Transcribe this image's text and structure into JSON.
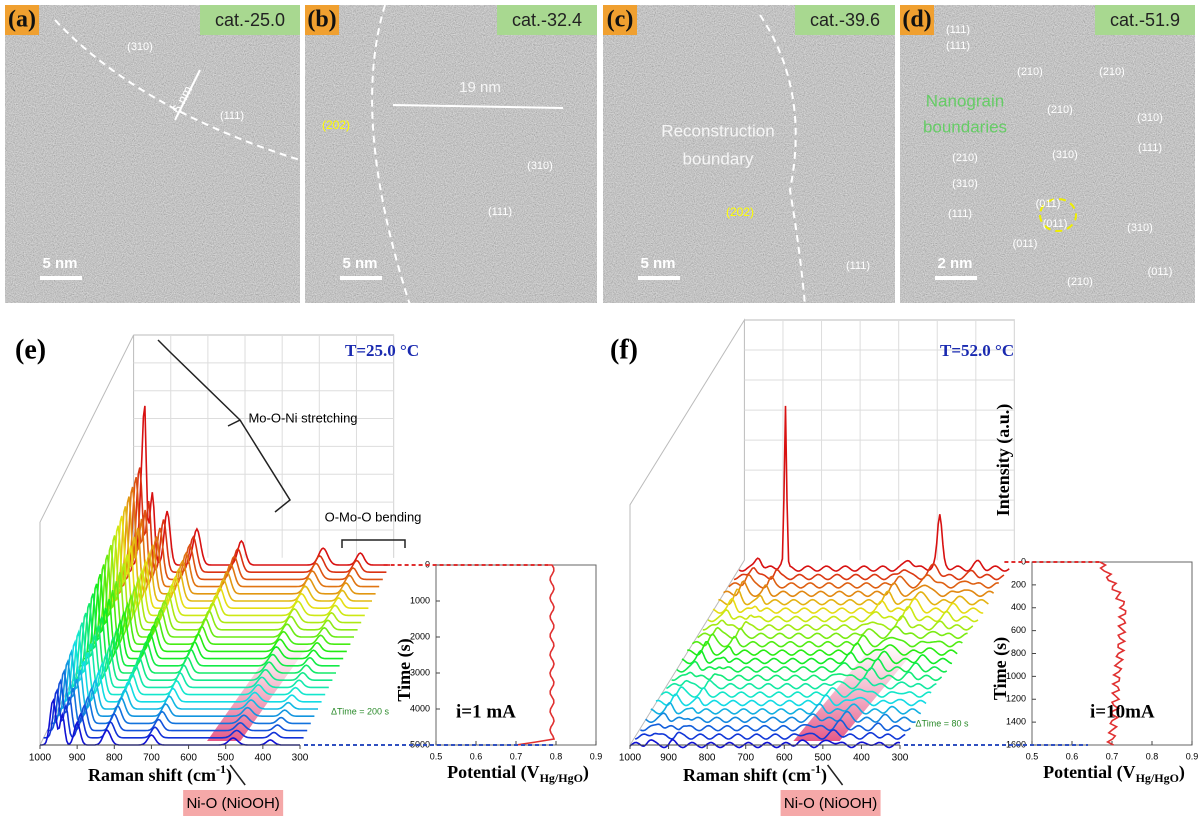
{
  "tem_panels": [
    {
      "label": "(a)",
      "sample": "cat.-25.0",
      "scale": "5 nm",
      "annotations": [
        "(310)",
        "6 nm",
        "(111)"
      ]
    },
    {
      "label": "(b)",
      "sample": "cat.-32.4",
      "scale": "5 nm",
      "annotations": [
        "19 nm",
        "(202)",
        "(310)",
        "(111)"
      ]
    },
    {
      "label": "(c)",
      "sample": "cat.-39.6",
      "scale": "5 nm",
      "annotations": [
        "Reconstruction",
        "boundary",
        "(202)",
        "(111)"
      ]
    },
    {
      "label": "(d)",
      "sample": "cat.-51.9",
      "scale": "2 nm",
      "annotations": [
        "(111)",
        "(111)",
        "Nanograin",
        "boundaries",
        "(210)",
        "(210)",
        "(210)",
        "(310)",
        "(111)",
        "(210)",
        "(310)",
        "(310)",
        "(011)",
        "(011)",
        "(111)",
        "(310)",
        "(011)",
        "(210)",
        "(011)"
      ]
    }
  ],
  "raman_panels": [
    {
      "label": "(e)",
      "temperature": "T=25.0 °C",
      "raman_ticks": [
        1000,
        900,
        800,
        700,
        600,
        500,
        400,
        300
      ],
      "time_ticks": [
        0,
        1000,
        2000,
        3000,
        4000,
        5000
      ],
      "potential_ticks": [
        0.5,
        0.6,
        0.7,
        0.8,
        0.9
      ],
      "raman_label": "Raman shift (cm",
      "raman_sup": "-1",
      "close": ")",
      "potential_label": "Potential (V",
      "potential_sub": "Hg/HgO",
      "time_label": "Time (s)",
      "current": "i=1 mA",
      "delta_time": "ΔTime = 200 s",
      "peak_label": "Ni-O (NiOOH)",
      "annotations": [
        "Mo-O-Ni stretching",
        "O-Mo-O bending"
      ]
    },
    {
      "label": "(f)",
      "temperature": "T=52.0 °C",
      "raman_ticks": [
        1000,
        900,
        800,
        700,
        600,
        500,
        400,
        300
      ],
      "time_ticks": [
        0,
        200,
        400,
        600,
        800,
        1000,
        1200,
        1400,
        1600
      ],
      "potential_ticks": [
        0.5,
        0.6,
        0.7,
        0.8,
        0.9
      ],
      "raman_label": "Raman shift (cm",
      "raman_sup": "-1",
      "close": ")",
      "potential_label": "Potential (V",
      "potential_sub": "Hg/HgO",
      "time_label": "Time (s)",
      "current": "i=10mA",
      "delta_time": "ΔTime = 80 s",
      "peak_label": "Ni-O (NiOOH)",
      "intensity_label": "Intensity (a.u.)"
    }
  ]
}
